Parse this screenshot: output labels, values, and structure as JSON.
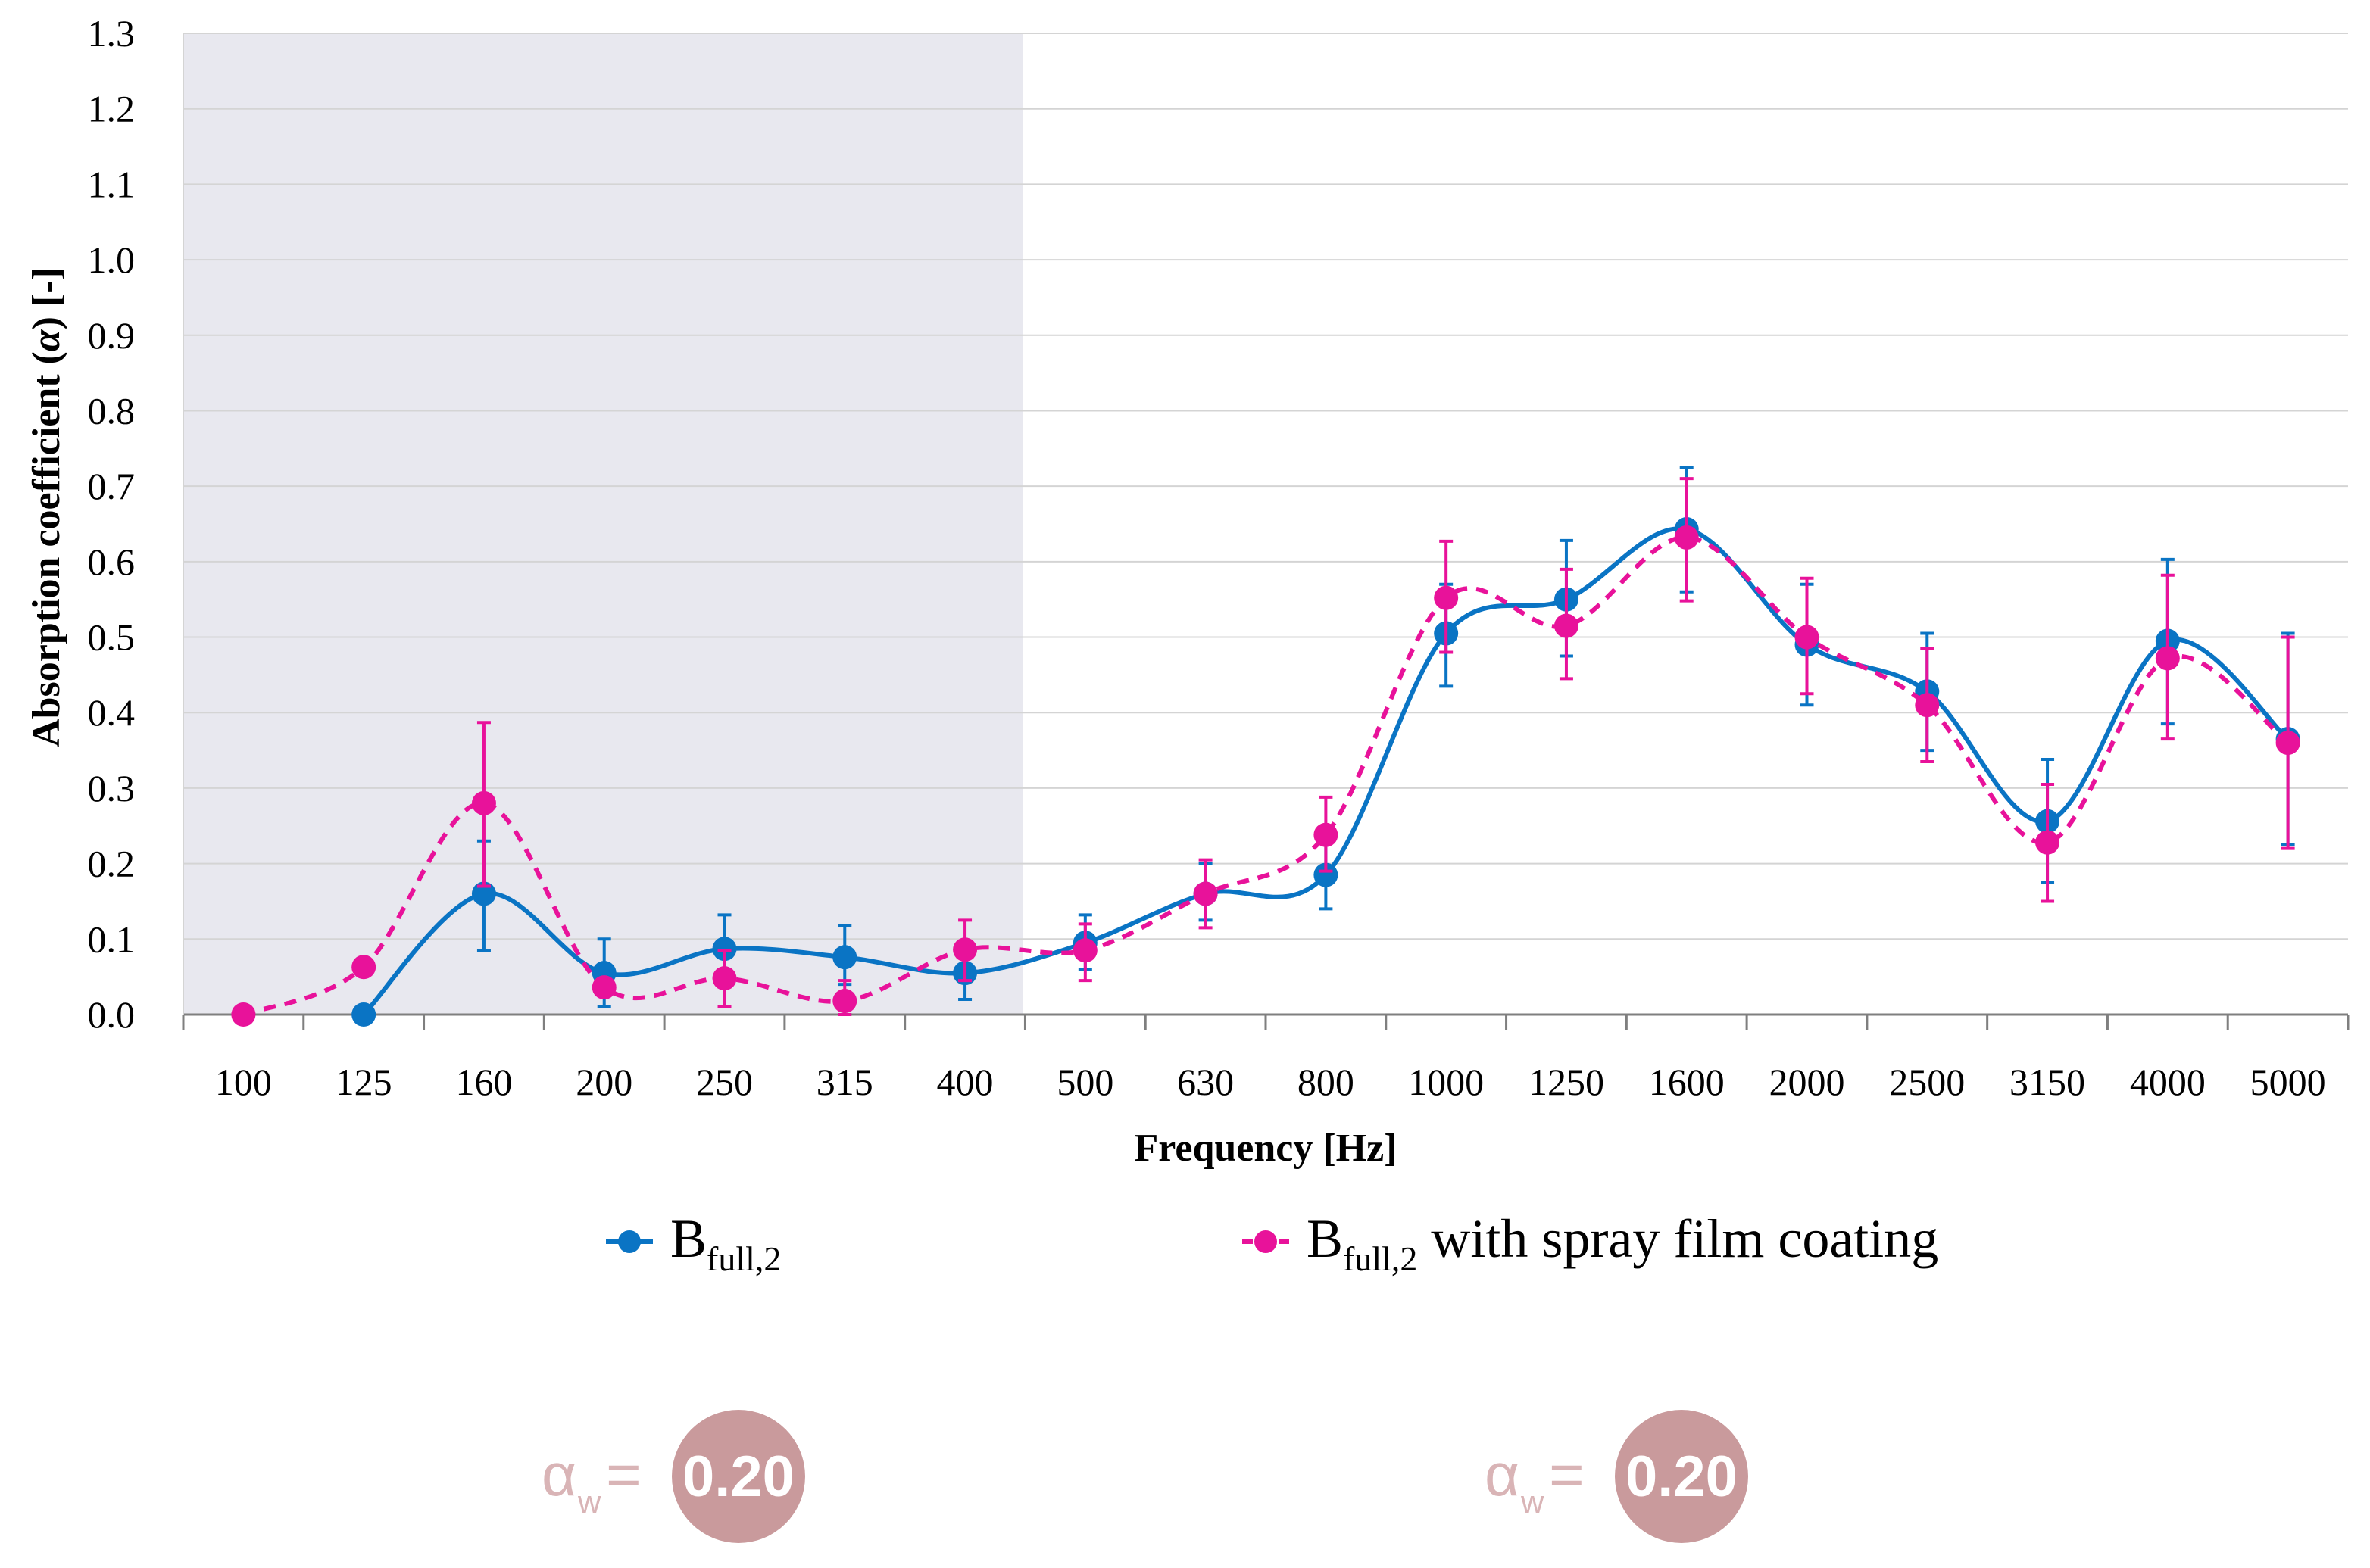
{
  "chart_data": {
    "type": "line",
    "title": "",
    "xlabel": "Frequency [Hz]",
    "ylabel_main": "Absorption coefficient (",
    "ylabel_alpha": "α",
    "ylabel_tail": ")  [-]",
    "categories": [
      "100",
      "125",
      "160",
      "200",
      "250",
      "315",
      "400",
      "500",
      "630",
      "800",
      "1000",
      "1250",
      "1600",
      "2000",
      "2500",
      "3150",
      "4000",
      "5000"
    ],
    "ylim": [
      0,
      1.3
    ],
    "ytick_step": 0.1,
    "yticks": [
      "0.0",
      "0.1",
      "0.2",
      "0.3",
      "0.4",
      "0.5",
      "0.6",
      "0.7",
      "0.8",
      "0.9",
      "1.0",
      "1.1",
      "1.2",
      "1.3"
    ],
    "grid": true,
    "shaded_region": {
      "from": "100",
      "to": "400",
      "color": "#e8e8ef"
    },
    "series": [
      {
        "name_base": "B",
        "name_sub": "full,2",
        "name_suffix": "",
        "color": "#0a74c4",
        "style": "solid",
        "start_index": 1,
        "values": [
          null,
          0.0,
          0.16,
          0.055,
          0.087,
          0.076,
          0.055,
          0.095,
          0.16,
          0.185,
          0.505,
          0.55,
          0.643,
          0.49,
          0.428,
          0.256,
          0.495,
          0.365
        ],
        "err_low": [
          null,
          null,
          0.085,
          0.01,
          0.06,
          0.04,
          0.02,
          0.06,
          0.125,
          0.14,
          0.435,
          0.475,
          0.56,
          0.41,
          0.35,
          0.175,
          0.385,
          0.225
        ],
        "err_high": [
          null,
          null,
          0.23,
          0.1,
          0.132,
          0.118,
          0.09,
          0.132,
          0.2,
          0.23,
          0.57,
          0.628,
          0.725,
          0.57,
          0.505,
          0.338,
          0.603,
          0.505
        ]
      },
      {
        "name_base": "B",
        "name_sub": "full,2",
        "name_suffix": " with spray film coating",
        "color": "#e8129a",
        "style": "dashed",
        "start_index": 0,
        "values": [
          0.0,
          0.063,
          0.28,
          0.036,
          0.048,
          0.018,
          0.086,
          0.085,
          0.16,
          0.238,
          0.552,
          0.515,
          0.632,
          0.5,
          0.41,
          0.228,
          0.472,
          0.36
        ],
        "err_low": [
          null,
          null,
          0.17,
          null,
          0.01,
          0.0,
          0.045,
          0.045,
          0.115,
          0.19,
          0.48,
          0.445,
          0.548,
          0.425,
          0.335,
          0.15,
          0.365,
          0.22
        ],
        "err_high": [
          null,
          null,
          0.387,
          null,
          0.085,
          0.045,
          0.125,
          0.12,
          0.205,
          0.288,
          0.627,
          0.59,
          0.71,
          0.578,
          0.485,
          0.305,
          0.582,
          0.5
        ]
      }
    ]
  },
  "badges": [
    {
      "symbol": "α",
      "sub": "w",
      "equals": "=",
      "value": "0.20"
    },
    {
      "symbol": "α",
      "sub": "w",
      "equals": "=",
      "value": "0.20"
    }
  ],
  "colors": {
    "badge_circle": "#c99a9c",
    "badge_text": "#d9b4b6",
    "axis": "#7f7f7f",
    "grid": "#d4d4d4"
  }
}
